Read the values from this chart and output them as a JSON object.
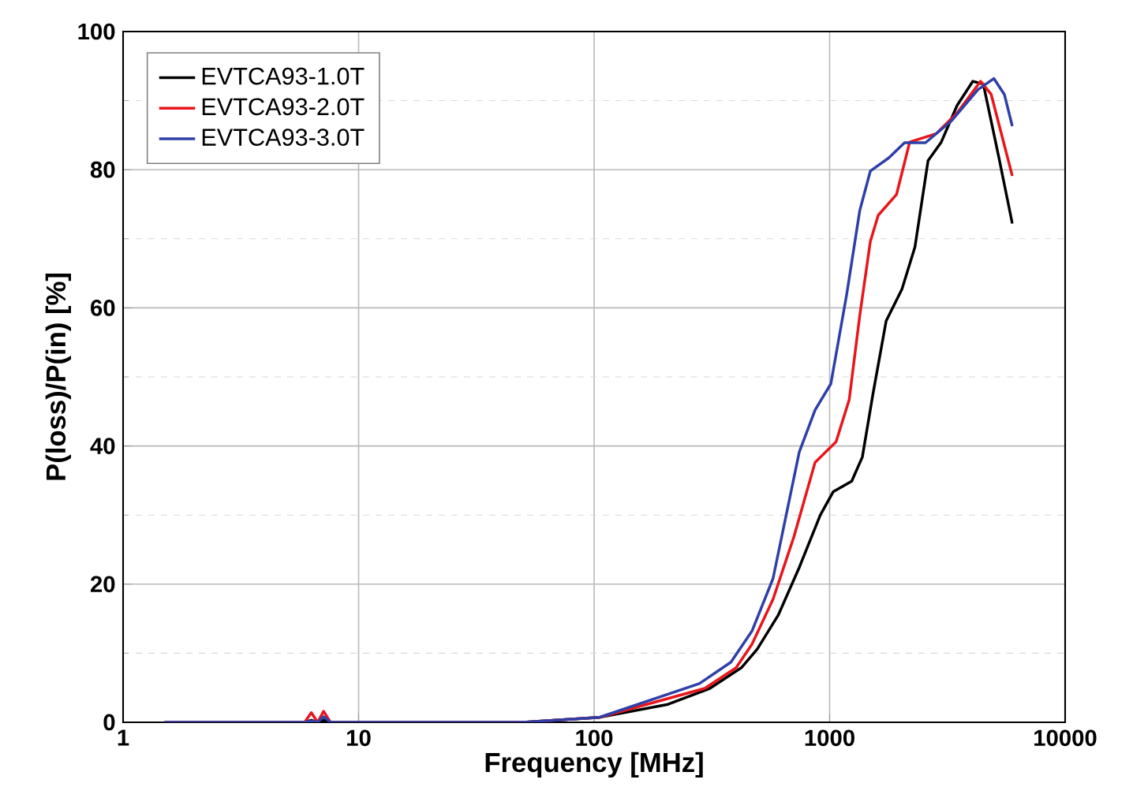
{
  "chart_data": {
    "type": "line",
    "xlabel": "Frequency [MHz]",
    "ylabel": "P(loss)/P(in) [%]",
    "log": "x",
    "grid": true,
    "legend": "top left",
    "marker": "none",
    "line_style": "solid",
    "xlim": [
      1,
      10000
    ],
    "xticks": [
      1,
      10,
      100,
      1000,
      10000
    ],
    "ylim": [
      0,
      100
    ],
    "yticks": [
      0,
      20,
      40,
      60,
      80,
      100
    ],
    "series": [
      {
        "name": "EVTCA93-1.0T",
        "color": "#000000",
        "x": [
          1.5,
          5.9,
          6.3,
          6.7,
          7.1,
          7.6,
          50,
          105,
          206,
          310,
          422,
          493,
          605,
          743,
          913,
          1037,
          1241,
          1377,
          1527,
          1738,
          2028,
          2303,
          2618,
          2979,
          3477,
          4057,
          4494,
          5237,
          5966
        ],
        "values": [
          0,
          0,
          0.3,
          0,
          0.3,
          0,
          0,
          0.7,
          2.6,
          4.9,
          7.9,
          10.6,
          15.5,
          22.4,
          30,
          33.4,
          34.9,
          38.4,
          47.5,
          58.1,
          62.7,
          68.8,
          81.3,
          84,
          89.3,
          92.8,
          92.4,
          81.7,
          72.2
        ]
      },
      {
        "name": "EVTCA93-2.0T",
        "color": "#e8151b",
        "x": [
          1.5,
          5.9,
          6.3,
          6.7,
          7.1,
          7.6,
          50,
          105,
          295,
          401,
          468,
          575,
          706,
          867,
          1065,
          1211,
          1343,
          1489,
          1608,
          1923,
          2188,
          2831,
          3477,
          4377,
          4853,
          5966
        ],
        "values": [
          0,
          0,
          1.4,
          0,
          1.6,
          0,
          0,
          0.7,
          4.9,
          7.9,
          11.3,
          17.8,
          26.9,
          37.6,
          40.6,
          46.7,
          58.9,
          69.6,
          73.4,
          76.4,
          84,
          85.2,
          88.2,
          92.8,
          90.9,
          79.1
        ]
      },
      {
        "name": "EVTCA93-3.0T",
        "color": "#2e3fa8",
        "x": [
          1.5,
          5.9,
          6.3,
          6.7,
          7.1,
          7.6,
          50,
          105,
          280,
          381,
          468,
          575,
          743,
          867,
          1012,
          1181,
          1343,
          1489,
          1783,
          2080,
          2553,
          3300,
          4266,
          4980,
          5520,
          5966
        ],
        "values": [
          0,
          0,
          0.2,
          0,
          0.8,
          0,
          0,
          0.7,
          5.6,
          8.7,
          13.2,
          20.8,
          39.1,
          45.2,
          49,
          61.9,
          74.1,
          79.8,
          81.7,
          83.9,
          83.9,
          87.1,
          91.6,
          93.2,
          90.9,
          86.3
        ]
      }
    ]
  }
}
